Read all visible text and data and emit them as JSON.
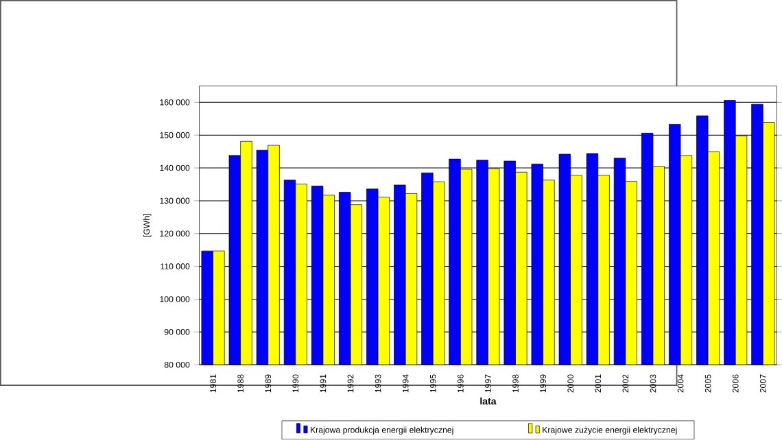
{
  "chart_data": {
    "type": "bar",
    "xlabel": "lata",
    "ylabel": "[GWh]",
    "categories": [
      "1981",
      "1988",
      "1989",
      "1990",
      "1991",
      "1992",
      "1993",
      "1994",
      "1995",
      "1996",
      "1997",
      "1998",
      "1999",
      "2000",
      "2001",
      "2002",
      "2003",
      "2004",
      "2005",
      "2006",
      "2007"
    ],
    "series": [
      {
        "name": "Krajowa produkcja energii elektrycznej",
        "color": "#0000ff",
        "values": [
          114700,
          143800,
          145400,
          136300,
          134500,
          132600,
          133600,
          134800,
          138500,
          142700,
          142400,
          142100,
          141200,
          144200,
          144400,
          143000,
          150600,
          153300,
          155900,
          160600,
          159400
        ]
      },
      {
        "name": "Krajowe zużycie energii elektrycznej",
        "color": "#ffff00",
        "values": [
          114700,
          148100,
          146900,
          135100,
          131700,
          128800,
          131100,
          132200,
          135800,
          139600,
          139800,
          138700,
          136300,
          137800,
          137800,
          135900,
          140500,
          143800,
          144900,
          149800,
          153900
        ]
      }
    ],
    "ylim": [
      80000,
      165000
    ],
    "yticks": [
      {
        "value": 80000,
        "label": "80 000"
      },
      {
        "value": 90000,
        "label": "90 000"
      },
      {
        "value": 100000,
        "label": "100 000"
      },
      {
        "value": 110000,
        "label": "110 000"
      },
      {
        "value": 120000,
        "label": "120 000"
      },
      {
        "value": 130000,
        "label": "130 000"
      },
      {
        "value": 140000,
        "label": "140 000"
      },
      {
        "value": 150000,
        "label": "150 000"
      },
      {
        "value": 160000,
        "label": "160 000"
      }
    ],
    "grid": "y",
    "legend": "bottom"
  }
}
